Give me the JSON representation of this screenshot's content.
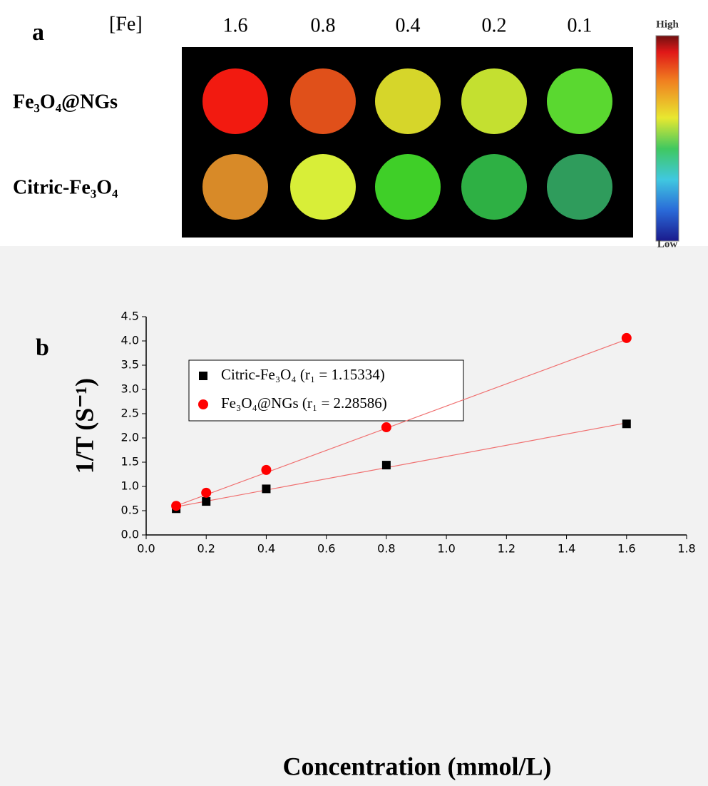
{
  "panel_a": {
    "label": "a",
    "header": "[Fe]",
    "concentrations": [
      "1.6",
      "0.8",
      "0.4",
      "0.2",
      "0.1"
    ],
    "rows": [
      {
        "label": "Fe₃O₄@NGs",
        "colors": [
          "#f21a10",
          "#e0501a",
          "#d6d62a",
          "#c4e030",
          "#5ad830"
        ]
      },
      {
        "label": "Citric-Fe₃O₄",
        "colors": [
          "#d88a28",
          "#d8ee38",
          "#3fcf28",
          "#2eb044",
          "#2f9c5c"
        ]
      }
    ],
    "colorbar": {
      "high": "High",
      "low": "Low"
    }
  },
  "chart_data": {
    "type": "scatter",
    "panel_label": "b",
    "x_label": "Concentration (mmol/L)",
    "y_label": "1/T (S⁻¹)",
    "xlim": [
      0,
      1.8
    ],
    "ylim": [
      0,
      4.5
    ],
    "xticks": [
      {
        "value": 0,
        "label": "0.0"
      },
      0.2,
      0.4,
      0.6,
      0.8,
      {
        "value": 1,
        "label": "1.0"
      },
      1.2,
      1.4,
      1.6,
      1.8
    ],
    "yticks": [
      {
        "value": 0,
        "label": "0.0"
      },
      0.5,
      {
        "value": 1,
        "label": "1.0"
      },
      1.5,
      {
        "value": 2,
        "label": "2.0"
      },
      2.5,
      {
        "value": 3,
        "label": "3.0"
      },
      3.5,
      {
        "value": 4,
        "label": "4.0"
      },
      4.5
    ],
    "x": [
      0.1,
      0.2,
      0.4,
      0.8,
      1.6
    ],
    "series": [
      {
        "name": "Citric-Fe₃O₄  (r₁ = 1.15334)",
        "color": "#000000",
        "marker": "square",
        "values": [
          0.54,
          0.69,
          0.95,
          1.44,
          2.29
        ]
      },
      {
        "name": "Fe₃O₄@NGs (r₁ = 2.28586)",
        "color": "#ff0000",
        "marker": "circle",
        "values": [
          0.6,
          0.87,
          1.34,
          2.22,
          4.06
        ]
      }
    ],
    "fit_lines": [
      {
        "x": [
          0.1,
          1.6
        ],
        "values": [
          0.58,
          2.31
        ],
        "color": "#f07070"
      },
      {
        "x": [
          0.1,
          1.6
        ],
        "values": [
          0.6,
          4.03
        ],
        "color": "#f07070"
      }
    ]
  }
}
